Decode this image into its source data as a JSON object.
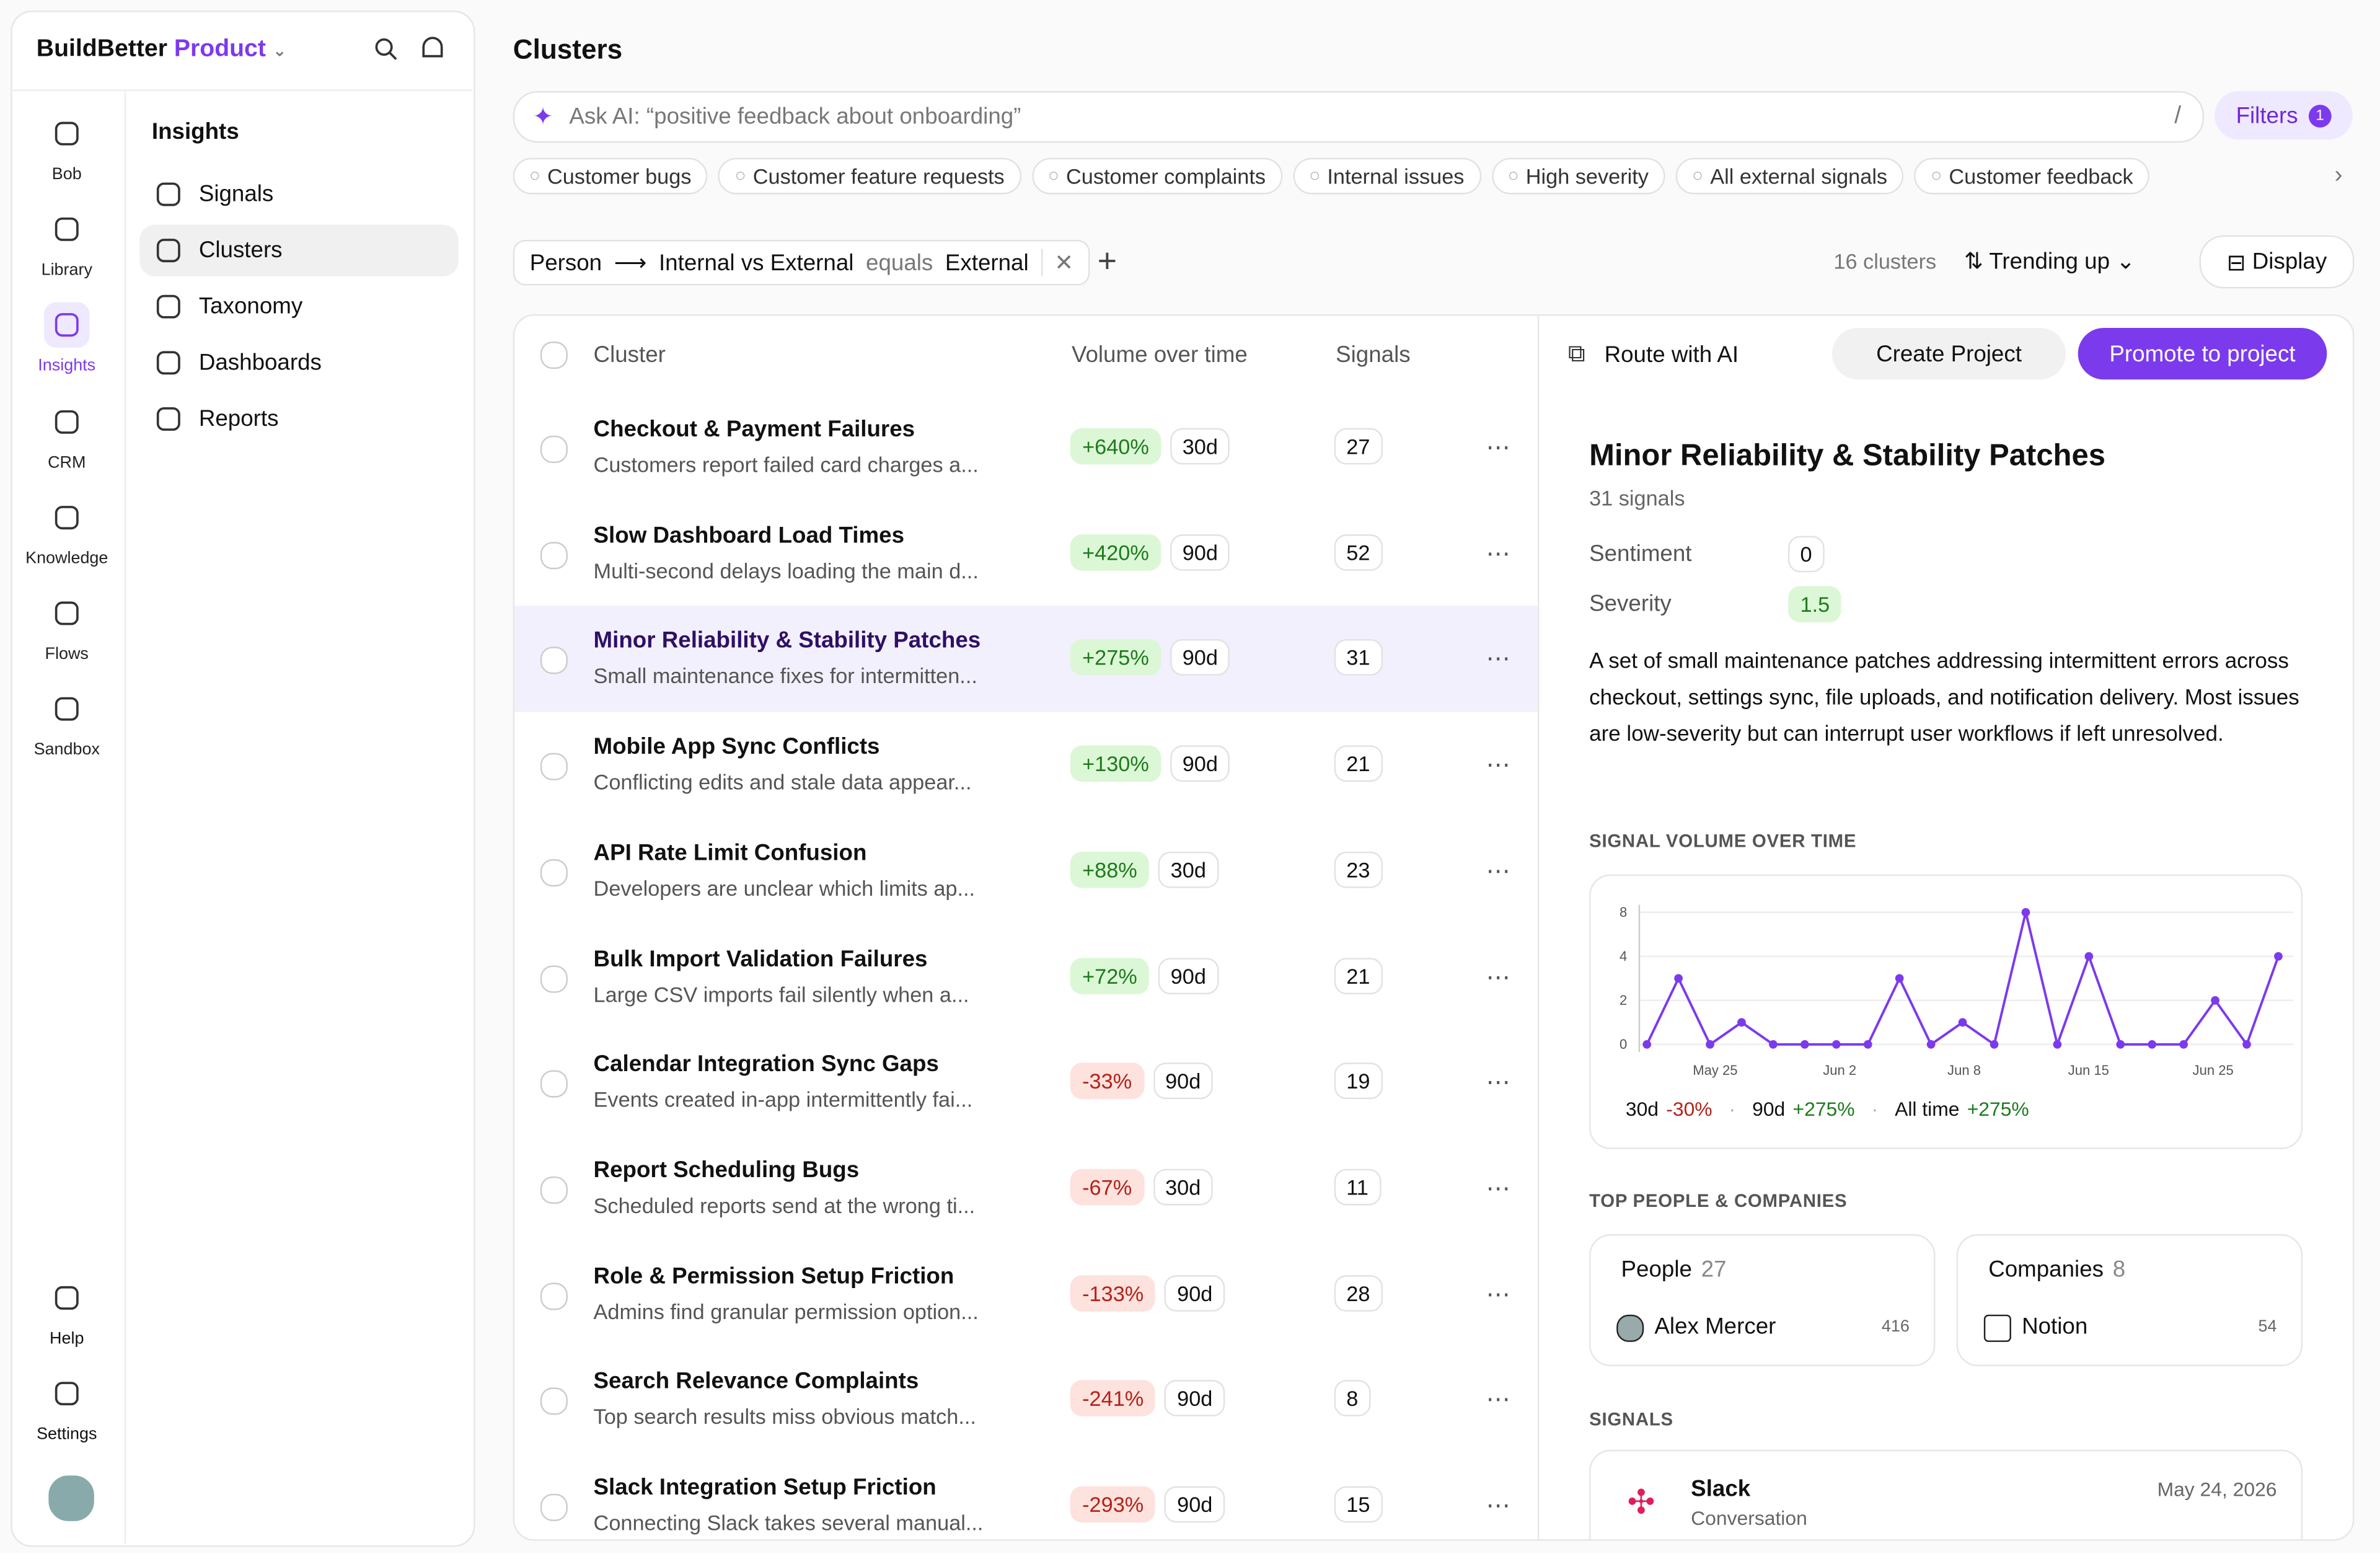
{
  "brand": {
    "name": "BuildBetter",
    "product": "Product"
  },
  "nav": [
    {
      "label": "Bob"
    },
    {
      "label": "Library"
    },
    {
      "label": "Insights",
      "active": true
    },
    {
      "label": "CRM"
    },
    {
      "label": "Knowledge"
    },
    {
      "label": "Flows"
    },
    {
      "label": "Sandbox"
    }
  ],
  "nav_bottom": [
    {
      "label": "Help"
    },
    {
      "label": "Settings"
    }
  ],
  "subnav": {
    "title": "Insights",
    "items": [
      {
        "label": "Signals"
      },
      {
        "label": "Clusters",
        "active": true
      },
      {
        "label": "Taxonomy"
      },
      {
        "label": "Dashboards"
      },
      {
        "label": "Reports"
      }
    ]
  },
  "page": {
    "title": "Clusters",
    "search_placeholder": "Ask AI: “positive feedback about onboarding”",
    "shortcut": "/",
    "filters_label": "Filters",
    "filters_count": 1,
    "chips": [
      "Customer bugs",
      "Customer feature requests",
      "Customer complaints",
      "Internal issues",
      "High severity",
      "All external signals",
      "Customer feedback"
    ],
    "filter": {
      "field": "Person",
      "subfield": "Internal vs External",
      "operator": "equals",
      "value": "External"
    },
    "cluster_count": "16 clusters",
    "sort": "Trending up",
    "display": "Display"
  },
  "table": {
    "headers": [
      "Cluster",
      "Volume over time",
      "Signals"
    ],
    "rows": [
      {
        "title": "Checkout & Payment Failures",
        "desc": "Customers report failed card charges a...",
        "change": "+640%",
        "window": "30d",
        "signals": 27
      },
      {
        "title": "Slow Dashboard Load Times",
        "desc": "Multi-second delays loading the main d...",
        "change": "+420%",
        "window": "90d",
        "signals": 52
      },
      {
        "title": "Minor Reliability & Stability Patches",
        "desc": "Small maintenance fixes for intermitten...",
        "change": "+275%",
        "window": "90d",
        "signals": 31,
        "selected": true
      },
      {
        "title": "Mobile App Sync Conflicts",
        "desc": "Conflicting edits and stale data appear...",
        "change": "+130%",
        "window": "90d",
        "signals": 21
      },
      {
        "title": "API Rate Limit Confusion",
        "desc": "Developers are unclear which limits ap...",
        "change": "+88%",
        "window": "30d",
        "signals": 23
      },
      {
        "title": "Bulk Import Validation Failures",
        "desc": "Large CSV imports fail silently when a...",
        "change": "+72%",
        "window": "90d",
        "signals": 21
      },
      {
        "title": "Calendar Integration Sync Gaps",
        "desc": "Events created in-app intermittently fai...",
        "change": "-33%",
        "window": "90d",
        "signals": 19
      },
      {
        "title": "Report Scheduling Bugs",
        "desc": "Scheduled reports send at the wrong ti...",
        "change": "-67%",
        "window": "30d",
        "signals": 11
      },
      {
        "title": "Role & Permission Setup Friction",
        "desc": "Admins find granular permission option...",
        "change": "-133%",
        "window": "90d",
        "signals": 28
      },
      {
        "title": "Search Relevance Complaints",
        "desc": "Top search results miss obvious match...",
        "change": "-241%",
        "window": "90d",
        "signals": 8
      },
      {
        "title": "Slack Integration Setup Friction",
        "desc": "Connecting Slack takes several manual...",
        "change": "-293%",
        "window": "90d",
        "signals": 15
      }
    ]
  },
  "detail": {
    "actions": [
      "Route with AI",
      "Create Project",
      "Promote to project"
    ],
    "title": "Minor Reliability & Stability Patches",
    "signals": "31 signals",
    "sentiment_label": "Sentiment",
    "sentiment": 0,
    "severity_label": "Severity",
    "severity": 1.5,
    "description": "A set of small maintenance patches addressing intermittent errors across checkout, settings sync, file uploads, and notification delivery. Most issues are low-severity but can interrupt user workflows if left unresolved.",
    "chart_title": "SIGNAL VOLUME OVER TIME",
    "chart": {
      "type": "line",
      "color": "#7c3aed",
      "values": [
        0,
        3,
        0,
        1,
        0,
        0,
        0,
        0,
        3,
        0,
        1,
        0,
        8,
        0,
        4,
        0,
        0,
        0,
        2,
        0,
        4
      ],
      "ylim": [
        0,
        8
      ],
      "yticks": [
        0,
        2,
        4,
        8
      ],
      "xticks": [
        "May 25",
        "Jun 2",
        "Jun 8",
        "Jun 15",
        "Jun 25"
      ],
      "grid": true
    },
    "summary": [
      {
        "window": "30d",
        "change": "-30%"
      },
      {
        "window": "90d",
        "change": "+275%"
      },
      {
        "window": "All time",
        "change": "+275%"
      }
    ],
    "people_title": "TOP PEOPLE & COMPANIES",
    "people": {
      "label": "People",
      "count": 27,
      "name": "Alex Mercer",
      "value": 416
    },
    "companies": {
      "label": "Companies",
      "count": 8,
      "name": "Notion",
      "value": 54
    },
    "signals_title": "SIGNALS",
    "signal": {
      "source": "Slack",
      "kind": "Conversation",
      "date": "May 24, 2026"
    }
  }
}
